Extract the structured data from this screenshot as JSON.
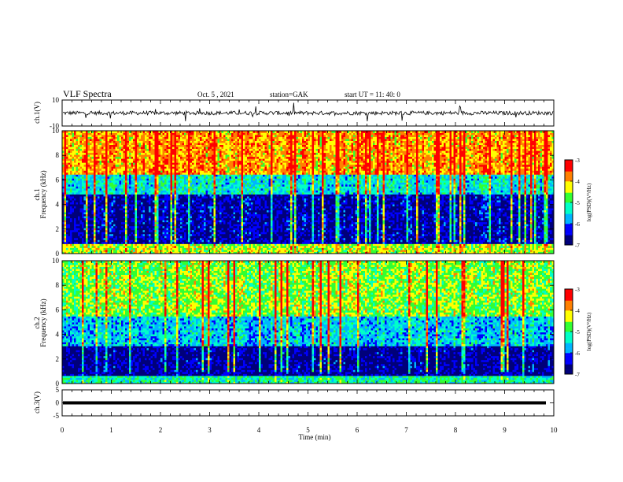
{
  "header": {
    "title": "VLF Spectra",
    "date": "Oct. 5 , 2021",
    "station": "station=GAK",
    "start": "start UT =  11: 40: 0"
  },
  "colors": {
    "colormap": [
      "#00007a",
      "#0000ff",
      "#00b4ff",
      "#00ffc8",
      "#32ff32",
      "#ffff00",
      "#ff8000",
      "#ff0000"
    ],
    "trace": "#000000"
  },
  "chart_data": [
    {
      "type": "line",
      "id": "ch1",
      "ylabel": "ch.1(V)",
      "ylim": [
        -10,
        10
      ],
      "y_ticks": [
        "10",
        "-10"
      ],
      "xlim": [
        0,
        10
      ],
      "description_values": {
        "baseline_V": 0,
        "noise_amplitude_V": 3,
        "spike_amplitude_V": 9
      }
    },
    {
      "type": "heatmap",
      "id": "ch1-spectrogram",
      "ylabel": "Frequency (kHz)",
      "panel_label": "ch.1",
      "xlim": [
        0,
        10
      ],
      "ylim": [
        0,
        10
      ],
      "y_ticks": [
        "0",
        "2",
        "4",
        "6",
        "8",
        "10"
      ],
      "colorbar": {
        "label": "log(PSD)(V²/Hz)",
        "range": [
          -7,
          -3
        ],
        "ticks": [
          "-3",
          "-4",
          "-5",
          "-6",
          "-7"
        ]
      },
      "bands_kHz": [
        {
          "from": 0,
          "to": 0.8,
          "level": -4.5
        },
        {
          "from": 0.8,
          "to": 4.8,
          "level": -6.6
        },
        {
          "from": 4.8,
          "to": 6.5,
          "level": -5.4
        },
        {
          "from": 6.5,
          "to": 10,
          "level": -3.9
        }
      ]
    },
    {
      "type": "heatmap",
      "id": "ch2-spectrogram",
      "ylabel": "Frequency (kHz)",
      "panel_label": "ch.2",
      "xlim": [
        0,
        10
      ],
      "ylim": [
        0,
        10
      ],
      "y_ticks": [
        "0",
        "2",
        "4",
        "6",
        "8",
        "10"
      ],
      "colorbar": {
        "label": "log(PSD)(V²/Hz)",
        "range": [
          -7,
          -3
        ],
        "ticks": [
          "-3",
          "-4",
          "-5",
          "-6",
          "-7"
        ]
      },
      "bands_kHz": [
        {
          "from": 0,
          "to": 0.6,
          "level": -5.2
        },
        {
          "from": 0.6,
          "to": 3.0,
          "level": -6.7
        },
        {
          "from": 3.0,
          "to": 5.5,
          "level": -5.6
        },
        {
          "from": 5.5,
          "to": 10,
          "level": -4.6
        }
      ]
    },
    {
      "type": "line",
      "id": "ch3",
      "ylabel": "ch.3(V)",
      "ylim": [
        -5,
        5
      ],
      "y_ticks": [
        "5",
        "0",
        "-5"
      ],
      "xlim": [
        0,
        10
      ],
      "description_values": {
        "constant_V": 0
      }
    }
  ],
  "xaxis": {
    "label": "Time (min)",
    "ticks": [
      "0",
      "1",
      "2",
      "3",
      "4",
      "5",
      "6",
      "7",
      "8",
      "9",
      "10"
    ]
  }
}
